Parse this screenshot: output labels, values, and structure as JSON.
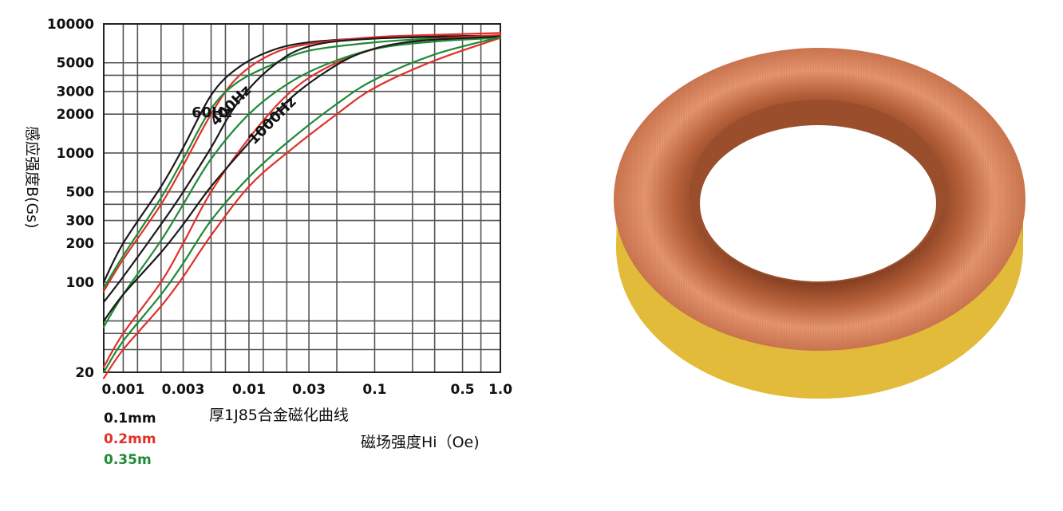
{
  "chart_data": {
    "type": "line",
    "title": "厚1J85合金磁化曲线",
    "xlabel": "磁场强度Hi（Oe)",
    "ylabel": "感应强度B(Gs)",
    "xscale": "log",
    "yscale": "log",
    "xlim": [
      0.0007,
      1.0
    ],
    "ylim": [
      20,
      10000
    ],
    "grid": true,
    "x_ticks": [
      {
        "value": 0.001,
        "label": "0.001"
      },
      {
        "value": 0.003,
        "label": "0.003"
      },
      {
        "value": 0.01,
        "label": "0.01"
      },
      {
        "value": 0.03,
        "label": "0.03"
      },
      {
        "value": 0.1,
        "label": "0.1"
      },
      {
        "value": 0.5,
        "label": "0.5"
      },
      {
        "value": 1.0,
        "label": "1.0"
      }
    ],
    "y_ticks": [
      {
        "value": 10000,
        "label": "10000"
      },
      {
        "value": 5000,
        "label": "5000"
      },
      {
        "value": 3000,
        "label": "3000"
      },
      {
        "value": 2000,
        "label": "2000"
      },
      {
        "value": 1000,
        "label": "1000"
      },
      {
        "value": 500,
        "label": "500"
      },
      {
        "value": 300,
        "label": "300"
      },
      {
        "value": 200,
        "label": "200"
      },
      {
        "value": 100,
        "label": "100"
      },
      {
        "value": 20,
        "label": "20"
      }
    ],
    "x_grid": [
      0.0007,
      0.001,
      0.0013,
      0.002,
      0.003,
      0.005,
      0.0065,
      0.01,
      0.013,
      0.02,
      0.03,
      0.05,
      0.1,
      0.2,
      0.3,
      0.5,
      0.7,
      1.0
    ],
    "y_grid": [
      20,
      30,
      40,
      50,
      100,
      200,
      300,
      400,
      500,
      1000,
      2000,
      3000,
      4000,
      5000,
      10000
    ],
    "freq_labels": [
      {
        "text": "60Hz",
        "x": 0.0035,
        "y": 1900,
        "rotate": 0
      },
      {
        "text": "400Hz",
        "x": 0.0055,
        "y": 1600,
        "rotate": -45
      },
      {
        "text": "1000Hz",
        "x": 0.011,
        "y": 1150,
        "rotate": -45
      }
    ],
    "legend": [
      {
        "label": "0.1mm",
        "color": "#111111"
      },
      {
        "label": "0.2mm",
        "color": "#e0302a"
      },
      {
        "label": "0.35m",
        "color": "#1f8a35"
      }
    ],
    "series": [
      {
        "name": "0.1mm 60Hz",
        "color": "#1a1a1a",
        "points": [
          [
            0.0007,
            100
          ],
          [
            0.001,
            200
          ],
          [
            0.002,
            550
          ],
          [
            0.003,
            1100
          ],
          [
            0.005,
            2800
          ],
          [
            0.008,
            4500
          ],
          [
            0.015,
            6200
          ],
          [
            0.03,
            7200
          ],
          [
            0.1,
            7800
          ],
          [
            0.3,
            8000
          ],
          [
            1.0,
            8100
          ]
        ]
      },
      {
        "name": "0.2mm 60Hz",
        "color": "#e0302a",
        "points": [
          [
            0.0007,
            85
          ],
          [
            0.001,
            150
          ],
          [
            0.002,
            400
          ],
          [
            0.003,
            800
          ],
          [
            0.005,
            2000
          ],
          [
            0.008,
            3800
          ],
          [
            0.015,
            5800
          ],
          [
            0.03,
            7000
          ],
          [
            0.1,
            7900
          ],
          [
            0.4,
            8300
          ],
          [
            1.0,
            8500
          ]
        ]
      },
      {
        "name": "0.35m 60Hz",
        "color": "#1f8a35",
        "points": [
          [
            0.0007,
            90
          ],
          [
            0.001,
            160
          ],
          [
            0.002,
            450
          ],
          [
            0.003,
            900
          ],
          [
            0.005,
            2200
          ],
          [
            0.008,
            3500
          ],
          [
            0.015,
            4800
          ],
          [
            0.03,
            6200
          ],
          [
            0.1,
            7200
          ],
          [
            0.3,
            7700
          ],
          [
            1.0,
            7900
          ]
        ]
      },
      {
        "name": "0.1mm 400Hz",
        "color": "#1a1a1a",
        "points": [
          [
            0.0007,
            70
          ],
          [
            0.001,
            110
          ],
          [
            0.002,
            280
          ],
          [
            0.003,
            500
          ],
          [
            0.005,
            1100
          ],
          [
            0.008,
            2400
          ],
          [
            0.015,
            4600
          ],
          [
            0.03,
            6700
          ],
          [
            0.1,
            7700
          ],
          [
            1.0,
            8100
          ]
        ]
      },
      {
        "name": "0.2mm 400Hz",
        "color": "#e0302a",
        "points": [
          [
            0.0007,
            22
          ],
          [
            0.001,
            40
          ],
          [
            0.002,
            100
          ],
          [
            0.003,
            200
          ],
          [
            0.005,
            500
          ],
          [
            0.01,
            1300
          ],
          [
            0.02,
            2800
          ],
          [
            0.04,
            4500
          ],
          [
            0.1,
            6400
          ],
          [
            0.3,
            7600
          ],
          [
            1.0,
            8200
          ]
        ]
      },
      {
        "name": "0.35m 400Hz",
        "color": "#1f8a35",
        "points": [
          [
            0.0007,
            45
          ],
          [
            0.001,
            80
          ],
          [
            0.002,
            210
          ],
          [
            0.003,
            400
          ],
          [
            0.005,
            900
          ],
          [
            0.01,
            2000
          ],
          [
            0.02,
            3400
          ],
          [
            0.04,
            4800
          ],
          [
            0.1,
            6400
          ],
          [
            0.3,
            7300
          ],
          [
            1.0,
            7800
          ]
        ]
      },
      {
        "name": "0.1mm 1000Hz",
        "color": "#1a1a1a",
        "points": [
          [
            0.0007,
            50
          ],
          [
            0.001,
            80
          ],
          [
            0.002,
            170
          ],
          [
            0.003,
            280
          ],
          [
            0.005,
            550
          ],
          [
            0.01,
            1200
          ],
          [
            0.02,
            2500
          ],
          [
            0.04,
            4200
          ],
          [
            0.08,
            6000
          ],
          [
            0.2,
            7300
          ],
          [
            1.0,
            8000
          ]
        ]
      },
      {
        "name": "0.2mm 1000Hz",
        "color": "#e0302a",
        "points": [
          [
            0.0007,
            18
          ],
          [
            0.001,
            30
          ],
          [
            0.002,
            65
          ],
          [
            0.003,
            110
          ],
          [
            0.005,
            230
          ],
          [
            0.01,
            550
          ],
          [
            0.02,
            1000
          ],
          [
            0.05,
            2000
          ],
          [
            0.1,
            3200
          ],
          [
            0.3,
            5200
          ],
          [
            1.0,
            7800
          ]
        ]
      },
      {
        "name": "0.35m 1000Hz",
        "color": "#1f8a35",
        "points": [
          [
            0.0007,
            20
          ],
          [
            0.001,
            35
          ],
          [
            0.002,
            80
          ],
          [
            0.003,
            140
          ],
          [
            0.005,
            300
          ],
          [
            0.01,
            650
          ],
          [
            0.02,
            1200
          ],
          [
            0.05,
            2400
          ],
          [
            0.1,
            3700
          ],
          [
            0.3,
            5800
          ],
          [
            1.0,
            7900
          ]
        ]
      }
    ]
  },
  "palette": {
    "grid": "#555555",
    "axis": "#222222",
    "copper": "#c8703f",
    "tape": "#e8c43c"
  }
}
